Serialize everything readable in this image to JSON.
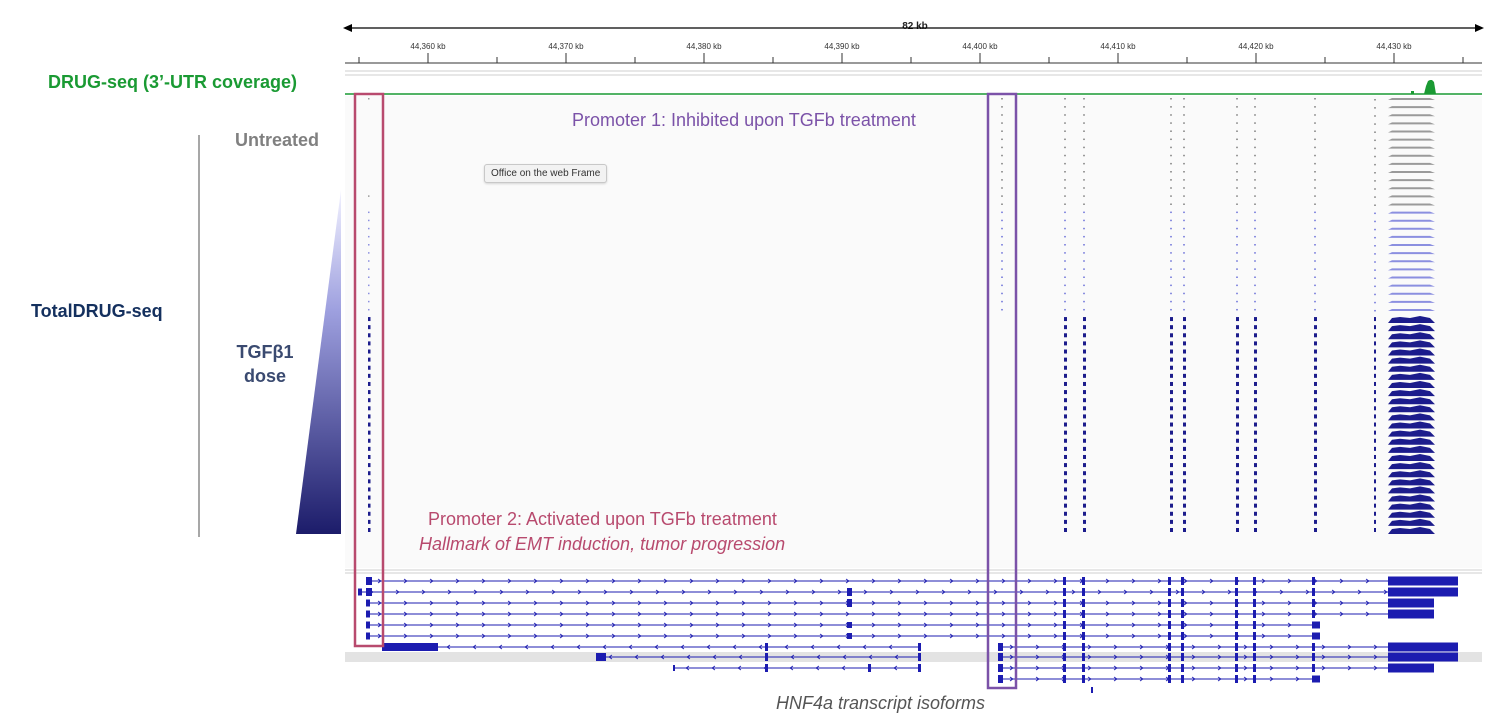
{
  "ruler": {
    "total_label": "82 kb",
    "ticks": [
      "44,360 kb",
      "44,370 kb",
      "44,380 kb",
      "44,390 kb",
      "44,400 kb",
      "44,410 kb",
      "44,420 kb",
      "44,430 kb"
    ]
  },
  "left_labels": {
    "drug_seq": "DRUG-seq (3’-UTR coverage)",
    "untreated": "Untreated",
    "totaldrug_seq": "TotalDRUG-seq",
    "tgf_dose_line1": "TGFβ1",
    "tgf_dose_line2": "dose"
  },
  "annotations": {
    "promoter1": "Promoter 1: Inhibited upon TGFb treatment",
    "promoter2": "Promoter 2: Activated upon TGFb treatment",
    "promoter2_sub": "Hallmark of EMT induction, tumor progression"
  },
  "tooltip": "Office on the web Frame",
  "caption": "HNF4a transcript isoforms",
  "colors": {
    "drug_seq": "#1a9a33",
    "promoter1_box": "#7b52a8",
    "promoter2_box": "#b84a6e",
    "untreated_reads": "#9a9a9a",
    "low_dose_reads": "#8b8fe0",
    "high_dose_reads": "#1c1c8c",
    "transcript": "#1c1cb0",
    "dose_gradient_light": "#f2f2ff",
    "dose_gradient_dark": "#1c1c6a"
  }
}
